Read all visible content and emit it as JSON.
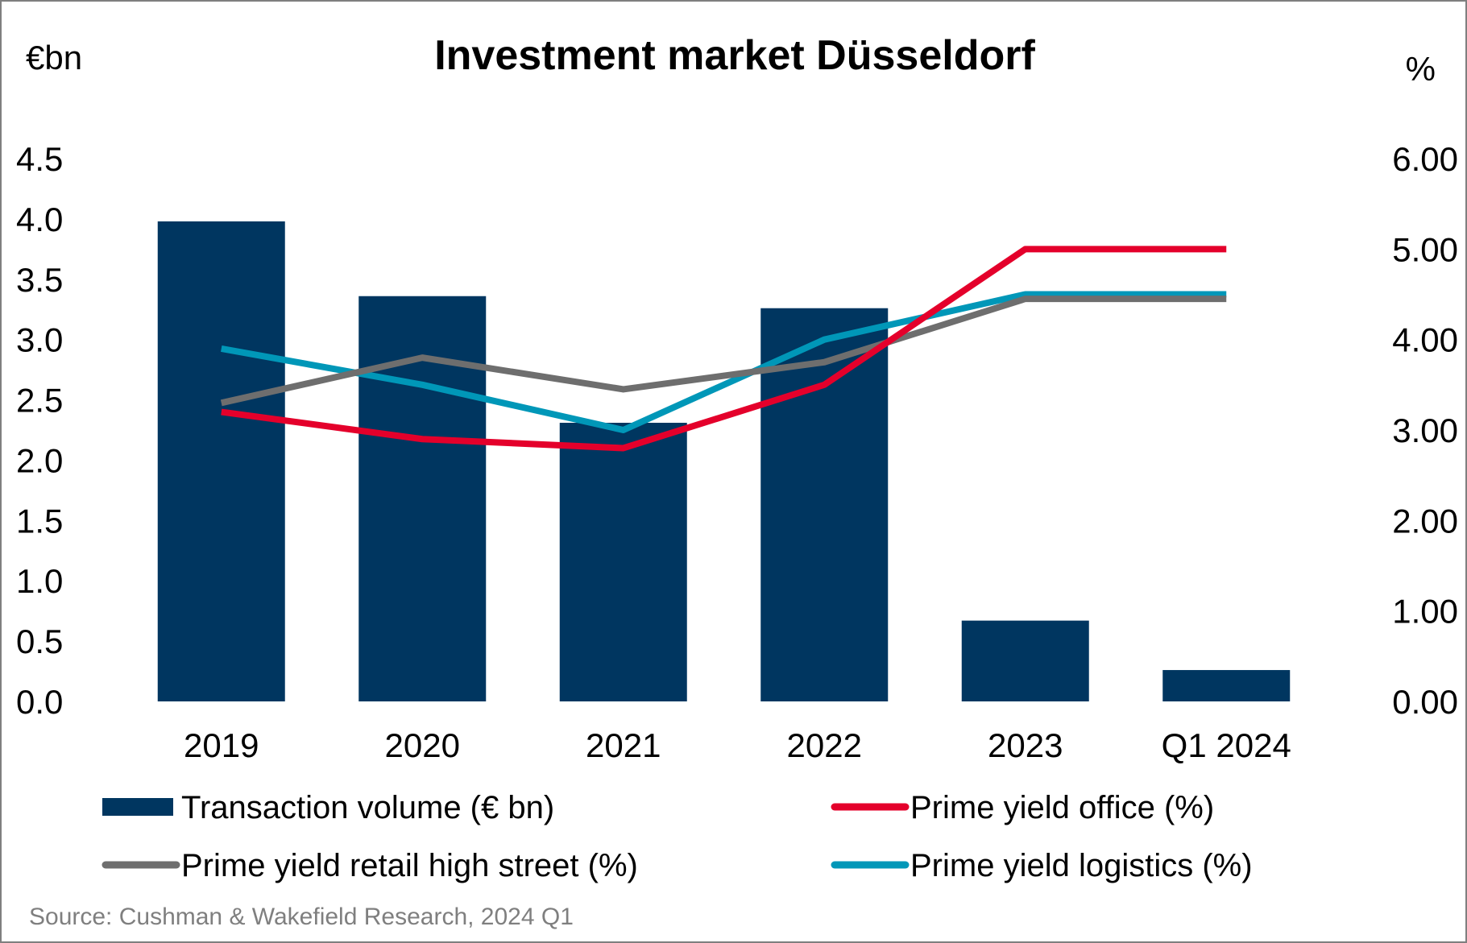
{
  "chart_data": {
    "type": "bar",
    "title": "Investment market Düsseldorf",
    "left_unit": "€bn",
    "right_unit": "%",
    "categories": [
      "2019",
      "2020",
      "2021",
      "2022",
      "2023",
      "Q1 2024"
    ],
    "y_left": {
      "min": 0,
      "max": 4.5,
      "ticks": [
        "0.0",
        "0.5",
        "1.0",
        "1.5",
        "2.0",
        "2.5",
        "3.0",
        "3.5",
        "4.0",
        "4.5"
      ]
    },
    "y_right": {
      "min": 0,
      "max": 6,
      "ticks": [
        "0.00",
        "1.00",
        "2.00",
        "3.00",
        "4.00",
        "5.00",
        "6.00"
      ]
    },
    "bar_series": {
      "name": "Transaction volume (€ bn)",
      "color": "#003660",
      "values": [
        3.98,
        3.36,
        2.31,
        3.26,
        0.67,
        0.26
      ]
    },
    "line_series": [
      {
        "name": "Prime yield office (%)",
        "color": "#e4002b",
        "values": [
          3.2,
          2.9,
          2.8,
          3.5,
          5.0,
          5.0
        ]
      },
      {
        "name": "Prime yield retail high street (%)",
        "color": "#6e6e6e",
        "values": [
          3.3,
          3.8,
          3.45,
          3.75,
          4.45,
          4.45
        ]
      },
      {
        "name": "Prime yield logistics (%)",
        "color": "#0097b8",
        "values": [
          3.9,
          3.5,
          3.0,
          4.0,
          4.5,
          4.5
        ]
      }
    ],
    "legend": [
      {
        "label": "Transaction volume (€ bn)",
        "kind": "bar",
        "color": "#003660"
      },
      {
        "label": "Prime yield office (%)",
        "kind": "line",
        "color": "#e4002b"
      },
      {
        "label": "Prime yield retail high street (%)",
        "kind": "line",
        "color": "#6e6e6e"
      },
      {
        "label": "Prime yield logistics (%)",
        "kind": "line",
        "color": "#0097b8"
      }
    ],
    "legend_placement": "bottom",
    "grid": false
  },
  "source": "Source: Cushman & Wakefield Research, 2024 Q1"
}
